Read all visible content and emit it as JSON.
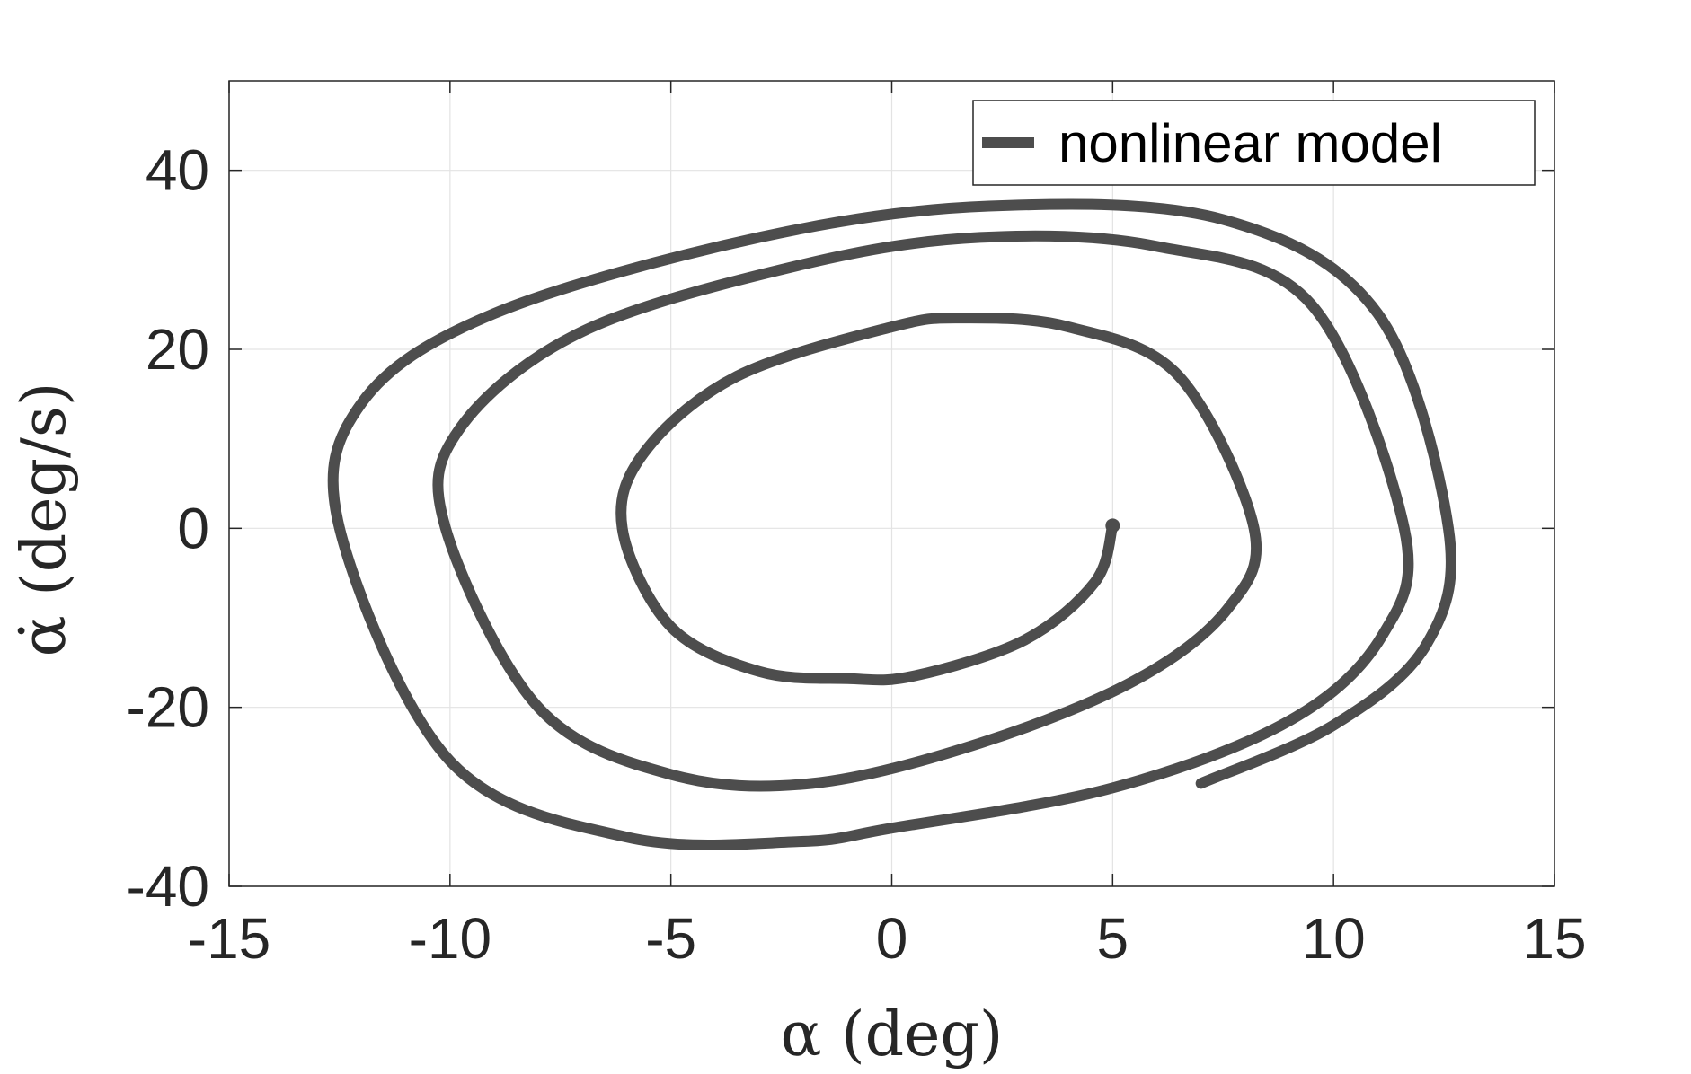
{
  "chart_data": {
    "type": "line",
    "xlabel": "α (deg)",
    "ylabel": "α̇ (deg/s)",
    "xlim": [
      -15,
      15
    ],
    "ylim": [
      -40,
      50
    ],
    "xticks": [
      -15,
      -10,
      -5,
      0,
      5,
      10,
      15
    ],
    "yticks": [
      -40,
      -20,
      0,
      20,
      40
    ],
    "xtick_labels": [
      "-15",
      "-10",
      "-5",
      "0",
      "5",
      "10",
      "15"
    ],
    "ytick_labels": [
      "-40",
      "-20",
      "0",
      "20",
      "40"
    ],
    "grid": true,
    "legend_position": "top-right",
    "line_color": "#4d4d4d",
    "series": [
      {
        "name": "nonlinear model",
        "x": [
          5,
          4.6,
          3.0,
          0.5,
          -1.0,
          -3.0,
          -5.0,
          -6.1,
          -5.6,
          -3.5,
          0.0,
          1.6,
          4.0,
          6.5,
          8.2,
          7.6,
          5.5,
          2.0,
          -1.8,
          -5.0,
          -8.0,
          -10.1,
          -9.8,
          -7.0,
          -2.0,
          2.0,
          6.0,
          9.5,
          11.6,
          11.1,
          9.0,
          5.0,
          0.0,
          -2.1,
          -6.0,
          -10.0,
          -12.5,
          -12.0,
          -9.0,
          -3.0,
          2.2,
          7.5,
          11.0,
          12.6,
          12.1,
          10.0,
          7.0
        ],
        "y": [
          0.3,
          -6.0,
          -12.5,
          -16.5,
          -16.8,
          -16.0,
          -11.0,
          0.0,
          8.5,
          17.0,
          22.5,
          23.5,
          22.5,
          17.0,
          0.0,
          -9.0,
          -17.0,
          -24.0,
          -28.5,
          -27.5,
          -20.0,
          0.0,
          11.0,
          22.0,
          29.5,
          32.5,
          31.5,
          25.0,
          0.0,
          -12.0,
          -21.5,
          -29.0,
          -33.5,
          -35.0,
          -34.5,
          -26.0,
          0.0,
          14.0,
          24.0,
          32.5,
          36.0,
          34.5,
          24.0,
          0.0,
          -13.0,
          -22.0,
          -28.5
        ]
      }
    ]
  }
}
